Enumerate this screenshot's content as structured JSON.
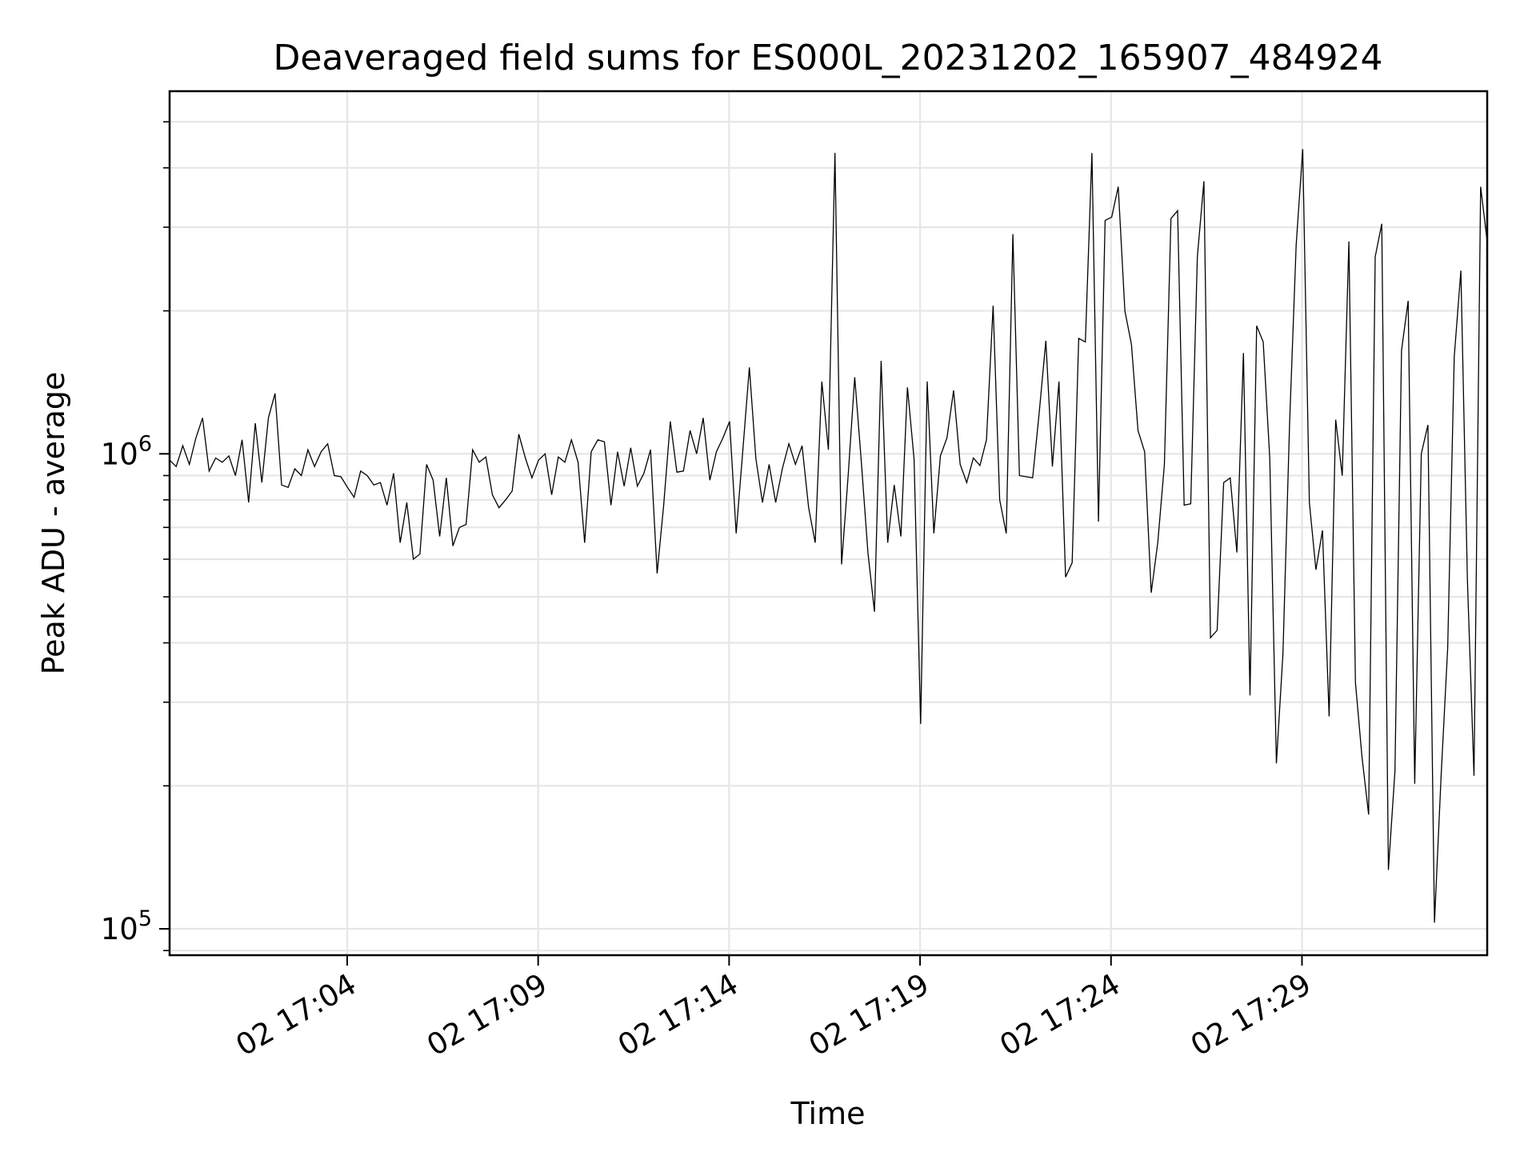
{
  "chart_data": {
    "type": "line",
    "title": "Deaveraged field sums for ES000L_20231202_165907_484924",
    "xlabel": "Time",
    "ylabel": "Peak ADU - average",
    "yscale": "log",
    "ylim": [
      88000,
      5800000
    ],
    "grid": true,
    "line_color": "#000000",
    "x_ticks": [
      {
        "label": "02 17:04",
        "minutes": 4
      },
      {
        "label": "02 17:09",
        "minutes": 9
      },
      {
        "label": "02 17:14",
        "minutes": 14
      },
      {
        "label": "02 17:19",
        "minutes": 19
      },
      {
        "label": "02 17:24",
        "minutes": 24
      },
      {
        "label": "02 17:29",
        "minutes": 29
      }
    ],
    "x_range_minutes": [
      -0.65,
      33.85
    ],
    "y_major_ticks": [
      {
        "value": 100000,
        "mantissa": "10",
        "exponent": "5"
      },
      {
        "value": 1000000,
        "mantissa": "10",
        "exponent": "6"
      }
    ],
    "y_minor_ticks": [
      90000,
      200000,
      300000,
      400000,
      500000,
      600000,
      700000,
      800000,
      900000,
      2000000,
      3000000,
      4000000,
      5000000
    ],
    "values": [
      970000,
      940000,
      1040000,
      950000,
      1080000,
      1190000,
      920000,
      980000,
      960000,
      990000,
      900000,
      1070000,
      790000,
      1160000,
      870000,
      1190000,
      1340000,
      860000,
      850000,
      930000,
      900000,
      1020000,
      940000,
      1010000,
      1050000,
      900000,
      895000,
      850000,
      810000,
      920000,
      900000,
      860000,
      870000,
      780000,
      910000,
      650000,
      790000,
      600000,
      615000,
      950000,
      880000,
      670000,
      890000,
      640000,
      700000,
      710000,
      1020000,
      960000,
      985000,
      820000,
      770000,
      800000,
      835000,
      1100000,
      980000,
      890000,
      970000,
      1000000,
      820000,
      985000,
      960000,
      1070000,
      960000,
      650000,
      1010000,
      1070000,
      1060000,
      780000,
      1010000,
      855000,
      1030000,
      855000,
      910000,
      1020000,
      560000,
      780000,
      1170000,
      915000,
      920000,
      1120000,
      1000000,
      1190000,
      880000,
      1010000,
      1080000,
      1170000,
      680000,
      1010000,
      1520000,
      975000,
      790000,
      950000,
      790000,
      930000,
      1050000,
      950000,
      1040000,
      770000,
      650000,
      1420000,
      1020000,
      4300000,
      585000,
      900000,
      1450000,
      960000,
      620000,
      465000,
      1570000,
      650000,
      860000,
      670000,
      1380000,
      975000,
      270000,
      1420000,
      680000,
      990000,
      1080000,
      1360000,
      950000,
      870000,
      980000,
      945000,
      1070000,
      2050000,
      800000,
      680000,
      2900000,
      900000,
      895000,
      890000,
      1220000,
      1730000,
      940000,
      1420000,
      550000,
      590000,
      1750000,
      1720000,
      4300000,
      720000,
      3100000,
      3150000,
      3650000,
      2000000,
      1700000,
      1120000,
      1010000,
      510000,
      650000,
      950000,
      3130000,
      3250000,
      780000,
      785000,
      2600000,
      3750000,
      410000,
      425000,
      870000,
      890000,
      620000,
      1630000,
      310000,
      1860000,
      1720000,
      980000,
      223000,
      380000,
      1160000,
      2750000,
      4380000,
      790000,
      570000,
      690000,
      280000,
      1180000,
      900000,
      2800000,
      330000,
      230000,
      174000,
      2600000,
      3050000,
      133000,
      215000,
      1650000,
      2100000,
      202000,
      1000000,
      1150000,
      103000,
      210000,
      390000,
      1600000,
      2430000,
      540000,
      210000,
      3650000,
      2800000
    ]
  }
}
